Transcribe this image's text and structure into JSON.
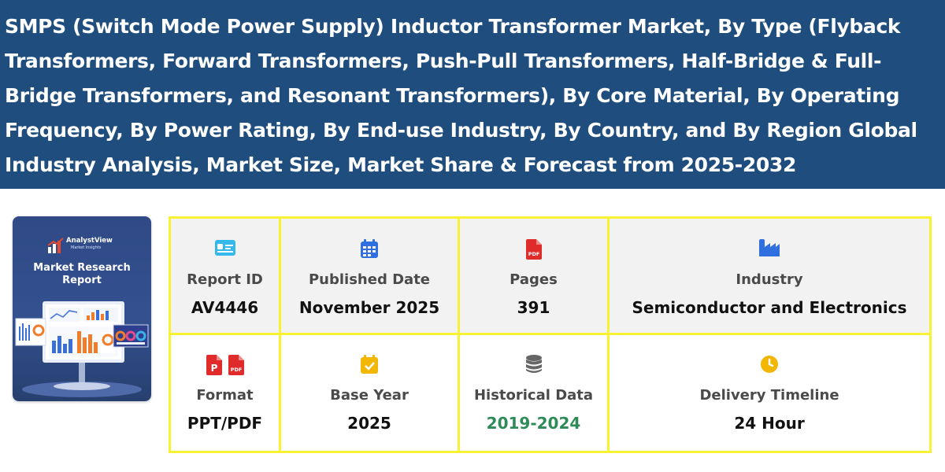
{
  "header": {
    "title": "SMPS (Switch Mode Power Supply) Inductor Transformer Market, By Type (Flyback Transformers, Forward Transformers, Push-Pull Transformers, Half-Bridge & Full-Bridge Transformers, and Resonant Transformers), By Core Material, By Operating Frequency, By Power Rating, By End-use Industry, By Country, and By Region Global Industry Analysis, Market Size, Market Share & Forecast from 2025-2032",
    "background_color": "#1f4e7e"
  },
  "cover": {
    "brand": "AnalystView",
    "brand_sub": "Market Insights",
    "title": "Market Research Report"
  },
  "details": {
    "border_color": "#f8f134",
    "report_id": {
      "label": "Report ID",
      "value": "AV4446",
      "icon": "id-card-icon"
    },
    "published_date": {
      "label": "Published Date",
      "value": "November 2025",
      "icon": "calendar-icon"
    },
    "pages": {
      "label": "Pages",
      "value": "391",
      "icon": "pdf-file-icon"
    },
    "industry": {
      "label": "Industry",
      "value": "Semiconductor and Electronics",
      "icon": "factory-icon"
    },
    "format": {
      "label": "Format",
      "value": "PPT/PDF",
      "icons": [
        "ppt-file-icon",
        "pdf-file-icon"
      ]
    },
    "base_year": {
      "label": "Base Year",
      "value": "2025",
      "icon": "calendar-check-icon"
    },
    "historical_data": {
      "label": "Historical Data",
      "value": "2019-2024",
      "icon": "database-icon",
      "value_color": "#2e8b57"
    },
    "delivery_timeline": {
      "label": "Delivery Timeline",
      "value": "24 Hour",
      "icon": "clock-icon"
    }
  }
}
